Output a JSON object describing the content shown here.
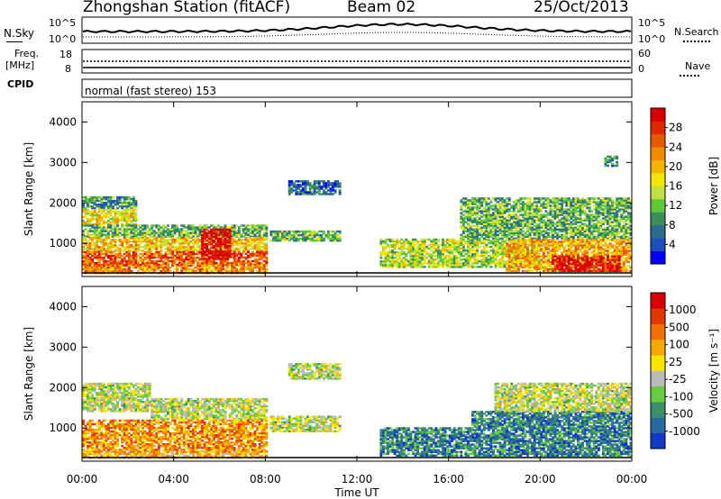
{
  "header": {
    "station": "Zhongshan Station (fitACF)",
    "beam": "Beam 02",
    "date": "25/Oct/2013"
  },
  "nsky_panel": {
    "left_label": "N.Sky",
    "right_label": "N.Search",
    "left_ticks": [
      "10^5",
      "10^0"
    ],
    "right_ticks": [
      "10^5",
      "10^0"
    ]
  },
  "freq_panel": {
    "left_label_1": "Freq.",
    "left_label_2": "[MHz]",
    "right_label": "Nave",
    "left_ticks": [
      "18",
      "8"
    ],
    "right_ticks": [
      "60",
      "0"
    ]
  },
  "cpid_panel": {
    "label": "CPID",
    "text": "normal (fast stereo) 153"
  },
  "chart_data": [
    {
      "type": "heatmap",
      "title": "",
      "xlabel": "Time UT",
      "ylabel": "Slant Range [km]",
      "x_ticks": [
        "00:00",
        "04:00",
        "08:00",
        "12:00",
        "16:00",
        "20:00",
        "00:00"
      ],
      "x_range_hours": [
        0,
        24
      ],
      "y_ticks": [
        1000,
        2000,
        3000,
        4000
      ],
      "ylim": [
        180,
        4500
      ],
      "colorbar": {
        "label": "Power [dB]",
        "ticks": [
          "4",
          "8",
          "12",
          "16",
          "20",
          "24",
          "28"
        ],
        "colors": [
          "#0000ff",
          "#1f4fb4",
          "#2f6b8f",
          "#3c8f5c",
          "#5ec83c",
          "#bfe040",
          "#f2e600",
          "#f5b400",
          "#f08a00",
          "#e85a00",
          "#e02800",
          "#d80000"
        ]
      },
      "regions": [
        {
          "t": [
            0.0,
            2.4
          ],
          "r": [
            1850,
            2150
          ],
          "v": 0.28
        },
        {
          "t": [
            0.0,
            2.4
          ],
          "r": [
            1450,
            1850
          ],
          "v": 0.55
        },
        {
          "t": [
            0.0,
            8.0
          ],
          "r": [
            1150,
            1450
          ],
          "v": 0.35
        },
        {
          "t": [
            0.0,
            8.0
          ],
          "r": [
            800,
            1150
          ],
          "v": 0.6
        },
        {
          "t": [
            0.0,
            8.0
          ],
          "r": [
            450,
            800
          ],
          "v": 0.8
        },
        {
          "t": [
            0.0,
            8.0
          ],
          "r": [
            250,
            450
          ],
          "v": 0.7
        },
        {
          "t": [
            5.2,
            6.4
          ],
          "r": [
            600,
            1350
          ],
          "v": 0.98
        },
        {
          "t": [
            8.2,
            11.2
          ],
          "r": [
            1050,
            1300
          ],
          "v": 0.35
        },
        {
          "t": [
            9.0,
            11.2
          ],
          "r": [
            2200,
            2550
          ],
          "v": 0.2
        },
        {
          "t": [
            13.0,
            20.0
          ],
          "r": [
            400,
            1100
          ],
          "v": 0.45
        },
        {
          "t": [
            16.5,
            24.0
          ],
          "r": [
            1100,
            2100
          ],
          "v": 0.35
        },
        {
          "t": [
            18.5,
            24.0
          ],
          "r": [
            300,
            1100
          ],
          "v": 0.65
        },
        {
          "t": [
            20.5,
            23.5
          ],
          "r": [
            300,
            700
          ],
          "v": 0.92
        },
        {
          "t": [
            22.8,
            23.4
          ],
          "r": [
            2900,
            3150
          ],
          "v": 0.25
        }
      ]
    },
    {
      "type": "heatmap",
      "title": "",
      "xlabel": "Time UT",
      "ylabel": "Slant Range [km]",
      "x_ticks": [
        "00:00",
        "04:00",
        "08:00",
        "12:00",
        "16:00",
        "20:00",
        "00:00"
      ],
      "x_range_hours": [
        0,
        24
      ],
      "y_ticks": [
        1000,
        2000,
        3000,
        4000
      ],
      "ylim": [
        180,
        4500
      ],
      "colorbar": {
        "label": "Velocity [m s⁻¹]",
        "ticks": [
          "1000",
          "500",
          "100",
          "25",
          "-25",
          "-100",
          "-500",
          "-1000"
        ],
        "colors": [
          "#1238c8",
          "#2a6a9e",
          "#3d8f6a",
          "#66cc44",
          "#bbbbbb",
          "#f6e600",
          "#f5a800",
          "#f07000",
          "#e03800",
          "#d80000"
        ]
      },
      "regions": [
        {
          "t": [
            0.0,
            3.0
          ],
          "r": [
            1400,
            2100
          ],
          "v": 0.45
        },
        {
          "t": [
            3.0,
            8.0
          ],
          "r": [
            1200,
            1700
          ],
          "v": 0.45
        },
        {
          "t": [
            0.0,
            8.0
          ],
          "r": [
            400,
            1200
          ],
          "v": 0.7
        },
        {
          "t": [
            0.0,
            8.0
          ],
          "r": [
            250,
            400
          ],
          "v": 0.62
        },
        {
          "t": [
            8.2,
            11.2
          ],
          "r": [
            900,
            1300
          ],
          "v": 0.45
        },
        {
          "t": [
            9.0,
            11.2
          ],
          "r": [
            2200,
            2600
          ],
          "v": 0.45
        },
        {
          "t": [
            13.0,
            17.0
          ],
          "r": [
            300,
            1000
          ],
          "v": 0.2
        },
        {
          "t": [
            17.0,
            24.0
          ],
          "r": [
            300,
            1400
          ],
          "v": 0.2
        },
        {
          "t": [
            18.0,
            24.0
          ],
          "r": [
            1400,
            2100
          ],
          "v": 0.45
        }
      ]
    }
  ]
}
